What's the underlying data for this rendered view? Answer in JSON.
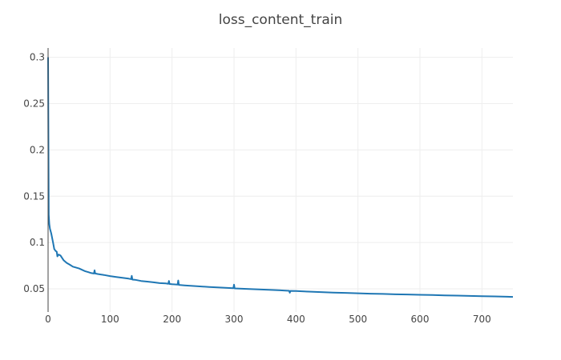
{
  "chart_data": {
    "type": "line",
    "title": "loss_content_train",
    "xlabel": "",
    "ylabel": "",
    "xlim": [
      0,
      750
    ],
    "ylim": [
      0.025,
      0.31
    ],
    "x_ticks": [
      0,
      100,
      200,
      300,
      400,
      500,
      600,
      700
    ],
    "y_ticks": [
      0.05,
      0.1,
      0.15,
      0.2,
      0.25,
      0.3
    ],
    "grid": true,
    "colors": {
      "series": "#1f77b4",
      "grid": "#eeeeee",
      "text": "#444444"
    },
    "series": [
      {
        "x": [
          0,
          1,
          2,
          3,
          5,
          8,
          10,
          12,
          14,
          15,
          17,
          20,
          25,
          30,
          35,
          40,
          45,
          50,
          55,
          60,
          65,
          70,
          74,
          75,
          76,
          80,
          90,
          100,
          110,
          120,
          130,
          134,
          135,
          136,
          140,
          150,
          160,
          170,
          180,
          190,
          194,
          195,
          196,
          200,
          209,
          210,
          211,
          220,
          240,
          260,
          280,
          299,
          300,
          301,
          320,
          340,
          360,
          375,
          380,
          389,
          390,
          391,
          400,
          420,
          440,
          460,
          480,
          500,
          520,
          540,
          560,
          570,
          580,
          600,
          620,
          640,
          660,
          680,
          700,
          720,
          740,
          750
        ],
        "y": [
          0.3,
          0.13,
          0.12,
          0.115,
          0.11,
          0.1,
          0.093,
          0.091,
          0.09,
          0.085,
          0.087,
          0.086,
          0.081,
          0.078,
          0.076,
          0.074,
          0.073,
          0.072,
          0.0705,
          0.069,
          0.068,
          0.067,
          0.0665,
          0.07,
          0.0665,
          0.066,
          0.065,
          0.0638,
          0.0628,
          0.062,
          0.061,
          0.0605,
          0.064,
          0.06,
          0.0598,
          0.0585,
          0.0578,
          0.057,
          0.0562,
          0.0558,
          0.0555,
          0.0585,
          0.0552,
          0.055,
          0.0545,
          0.059,
          0.0543,
          0.0538,
          0.0528,
          0.052,
          0.0513,
          0.0507,
          0.0545,
          0.0505,
          0.05,
          0.0494,
          0.0488,
          0.0484,
          0.0482,
          0.0479,
          0.0458,
          0.0478,
          0.0476,
          0.047,
          0.0465,
          0.046,
          0.0456,
          0.0452,
          0.0448,
          0.0445,
          0.0441,
          0.044,
          0.0439,
          0.0436,
          0.0433,
          0.043,
          0.0427,
          0.0424,
          0.0421,
          0.0418,
          0.0415,
          0.0413
        ]
      }
    ]
  }
}
